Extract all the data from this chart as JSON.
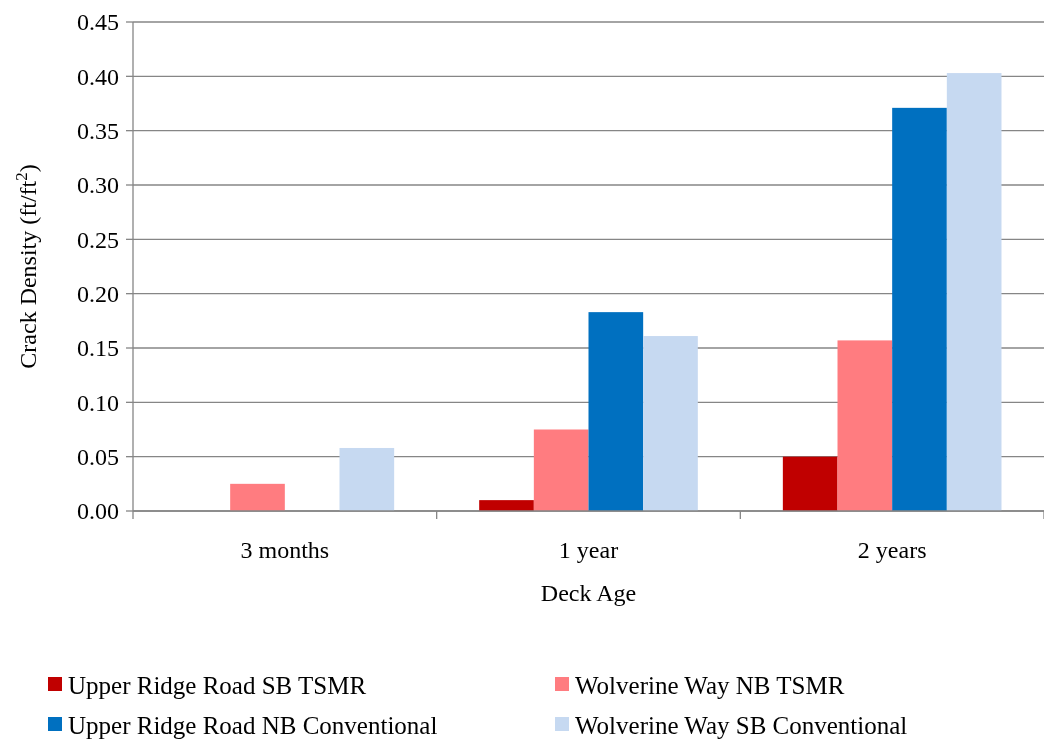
{
  "chart_data": {
    "type": "bar",
    "xlabel": "Deck Age",
    "ylabel": "Crack Density  (ft/ft$^{2}$)",
    "categories": [
      "3 months",
      "1 year",
      "2 years"
    ],
    "series": [
      {
        "name": "Upper Ridge Road SB TSMR",
        "color": "#c00000",
        "values": [
          0,
          0.01,
          0.05
        ]
      },
      {
        "name": "Wolverine Way NB TSMR",
        "color": "#ff7c80",
        "values": [
          0.025,
          0.075,
          0.157
        ]
      },
      {
        "name": "Upper Ridge Road NB Conventional",
        "color": "#0070c0",
        "values": [
          0,
          0.183,
          0.371
        ]
      },
      {
        "name": "Wolverine Way SB Conventional",
        "color": "#c6d9f1",
        "values": [
          0.058,
          0.161,
          0.403
        ]
      }
    ],
    "ylim": [
      0,
      0.45
    ],
    "yticks": [
      {
        "value": 0,
        "label": "0.00"
      },
      {
        "value": 0.05,
        "label": "0.05"
      },
      {
        "value": 0.1,
        "label": "0.10"
      },
      {
        "value": 0.15,
        "label": "0.15"
      },
      {
        "value": 0.2,
        "label": "0.20"
      },
      {
        "value": 0.25,
        "label": "0.25"
      },
      {
        "value": 0.3,
        "label": "0.30"
      },
      {
        "value": 0.35,
        "label": "0.35"
      },
      {
        "value": 0.4,
        "label": "0.40"
      },
      {
        "value": 0.45,
        "label": "0.45"
      }
    ],
    "grid": "y",
    "legend": "bottom"
  }
}
